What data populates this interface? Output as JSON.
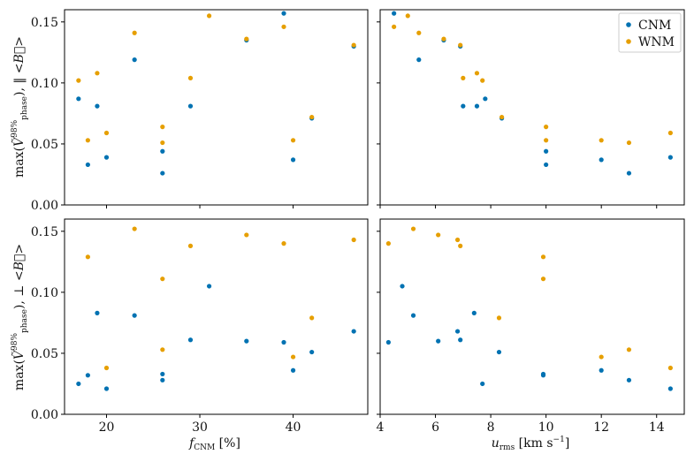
{
  "chart_data": [
    {
      "type": "scatter",
      "panel": "top-left",
      "xlabel": "",
      "ylabel": "max(Ṽ^98%_phase), ‖ <B⃗>",
      "xlim": [
        15.5,
        48
      ],
      "ylim": [
        0,
        0.16
      ],
      "xticks": [
        20,
        30,
        40
      ],
      "yticks": [
        0.0,
        0.05,
        0.1,
        0.15
      ],
      "ytick_labels": [
        "0.00",
        "0.05",
        "0.10",
        "0.15"
      ],
      "xtick_labels": [],
      "series": [
        {
          "name": "CNM",
          "color": "#0072B2",
          "x": [
            17,
            18,
            19,
            20,
            23,
            26,
            26,
            29,
            35,
            39,
            40,
            42,
            46.5
          ],
          "y": [
            0.087,
            0.033,
            0.081,
            0.039,
            0.119,
            0.044,
            0.026,
            0.081,
            0.135,
            0.157,
            0.037,
            0.071,
            0.13
          ]
        },
        {
          "name": "WNM",
          "color": "#E69F00",
          "x": [
            17,
            18,
            19,
            20,
            23,
            26,
            26,
            29,
            31,
            35,
            39,
            40,
            42,
            46.5
          ],
          "y": [
            0.102,
            0.053,
            0.108,
            0.059,
            0.141,
            0.064,
            0.051,
            0.104,
            0.155,
            0.136,
            0.146,
            0.053,
            0.072,
            0.131
          ]
        }
      ]
    },
    {
      "type": "scatter",
      "panel": "top-right",
      "xlabel": "",
      "ylabel": "",
      "xlim": [
        4,
        15
      ],
      "ylim": [
        0,
        0.16
      ],
      "xticks": [
        4,
        6,
        8,
        10,
        12,
        14
      ],
      "yticks": [
        0.0,
        0.05,
        0.1,
        0.15
      ],
      "xtick_labels": [],
      "ytick_labels": [],
      "legend": {
        "placement": "top-right",
        "entries": [
          "CNM",
          "WNM"
        ]
      },
      "series": [
        {
          "name": "CNM",
          "color": "#0072B2",
          "x": [
            4.5,
            5.4,
            6.3,
            6.9,
            7.0,
            7.5,
            7.8,
            8.4,
            10,
            10,
            12,
            13,
            14.5
          ],
          "y": [
            0.157,
            0.119,
            0.135,
            0.13,
            0.081,
            0.081,
            0.087,
            0.071,
            0.044,
            0.033,
            0.037,
            0.026,
            0.039
          ]
        },
        {
          "name": "WNM",
          "color": "#E69F00",
          "x": [
            4.5,
            5.0,
            5.4,
            6.3,
            6.9,
            7.0,
            7.5,
            7.7,
            8.4,
            10,
            10,
            12,
            13,
            14.5
          ],
          "y": [
            0.146,
            0.155,
            0.141,
            0.136,
            0.131,
            0.104,
            0.108,
            0.102,
            0.072,
            0.064,
            0.053,
            0.053,
            0.051,
            0.059
          ]
        }
      ]
    },
    {
      "type": "scatter",
      "panel": "bottom-left",
      "xlabel": "f_CNM [%]",
      "ylabel": "max(Ṽ^98%_phase), ⊥ <B⃗>",
      "xlim": [
        15.5,
        48
      ],
      "ylim": [
        0,
        0.16
      ],
      "xticks": [
        20,
        30,
        40
      ],
      "xtick_labels": [
        "20",
        "30",
        "40"
      ],
      "yticks": [
        0.0,
        0.05,
        0.1,
        0.15
      ],
      "ytick_labels": [
        "0.00",
        "0.05",
        "0.10",
        "0.15"
      ],
      "series": [
        {
          "name": "CNM",
          "color": "#0072B2",
          "x": [
            17,
            18,
            19,
            20,
            23,
            26,
            26,
            29,
            31,
            35,
            39,
            40,
            42,
            46.5
          ],
          "y": [
            0.025,
            0.032,
            0.083,
            0.021,
            0.081,
            0.033,
            0.028,
            0.061,
            0.105,
            0.06,
            0.059,
            0.036,
            0.051,
            0.068
          ]
        },
        {
          "name": "WNM",
          "color": "#E69F00",
          "x": [
            18,
            20,
            23,
            26,
            26,
            29,
            35,
            39,
            40,
            42,
            46.5
          ],
          "y": [
            0.129,
            0.038,
            0.152,
            0.111,
            0.053,
            0.138,
            0.147,
            0.14,
            0.047,
            0.079,
            0.143
          ]
        }
      ]
    },
    {
      "type": "scatter",
      "panel": "bottom-right",
      "xlabel": "u_rms [km s^-1]",
      "ylabel": "",
      "xlim": [
        4,
        15
      ],
      "ylim": [
        0,
        0.16
      ],
      "xticks": [
        4,
        6,
        8,
        10,
        12,
        14
      ],
      "xtick_labels": [
        "4",
        "6",
        "8",
        "10",
        "12",
        "14"
      ],
      "yticks": [
        0.0,
        0.05,
        0.1,
        0.15
      ],
      "ytick_labels": [],
      "series": [
        {
          "name": "CNM",
          "color": "#0072B2",
          "x": [
            4.3,
            4.8,
            5.2,
            6.1,
            6.8,
            6.9,
            7.4,
            7.7,
            8.3,
            9.9,
            9.9,
            12,
            13,
            14.5
          ],
          "y": [
            0.059,
            0.105,
            0.081,
            0.06,
            0.068,
            0.061,
            0.083,
            0.025,
            0.051,
            0.033,
            0.032,
            0.036,
            0.028,
            0.021
          ]
        },
        {
          "name": "WNM",
          "color": "#E69F00",
          "x": [
            4.3,
            5.2,
            6.1,
            6.8,
            6.9,
            8.3,
            9.9,
            9.9,
            12,
            13,
            14.5
          ],
          "y": [
            0.14,
            0.152,
            0.147,
            0.143,
            0.138,
            0.079,
            0.129,
            0.111,
            0.047,
            0.053,
            0.038
          ]
        }
      ]
    }
  ]
}
